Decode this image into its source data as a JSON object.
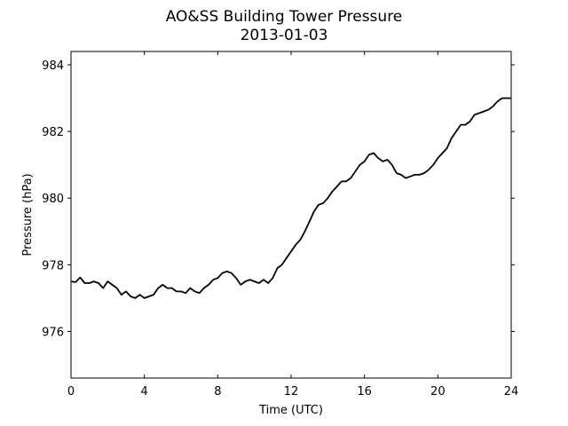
{
  "chart_data": {
    "type": "line",
    "title": "AO&SS Building Tower Pressure",
    "subtitle": "2013-01-03",
    "xlabel": "Time (UTC)",
    "ylabel": "Pressure (hPa)",
    "xlim": [
      0,
      24
    ],
    "ylim": [
      974.6,
      984.4
    ],
    "xticks": [
      0,
      4,
      8,
      12,
      16,
      20,
      24
    ],
    "yticks": [
      976,
      978,
      980,
      982,
      984
    ],
    "grid": false,
    "line_color": "#000000",
    "series": [
      {
        "x": [
          0,
          0.25,
          0.5,
          0.75,
          1,
          1.25,
          1.5,
          1.75,
          2,
          2.25,
          2.5,
          2.75,
          3,
          3.25,
          3.5,
          3.75,
          4,
          4.25,
          4.5,
          4.75,
          5,
          5.25,
          5.5,
          5.75,
          6,
          6.25,
          6.5,
          6.75,
          7,
          7.25,
          7.5,
          7.75,
          8,
          8.25,
          8.5,
          8.75,
          9,
          9.25,
          9.5,
          9.75,
          10,
          10.25,
          10.5,
          10.75,
          11,
          11.25,
          11.5,
          11.75,
          12,
          12.25,
          12.5,
          12.75,
          13,
          13.25,
          13.5,
          13.75,
          14,
          14.25,
          14.5,
          14.75,
          15,
          15.25,
          15.5,
          15.75,
          16,
          16.25,
          16.5,
          16.75,
          17,
          17.25,
          17.5,
          17.75,
          18,
          18.25,
          18.5,
          18.75,
          19,
          19.25,
          19.5,
          19.75,
          20,
          20.25,
          20.5,
          20.75,
          21,
          21.25,
          21.5,
          21.75,
          22,
          22.25,
          22.5,
          22.75,
          23,
          23.25,
          23.5,
          23.75,
          24
        ],
        "y": [
          977.5,
          977.48,
          977.62,
          977.45,
          977.45,
          977.5,
          977.45,
          977.3,
          977.5,
          977.4,
          977.3,
          977.1,
          977.2,
          977.05,
          977.0,
          977.1,
          977.0,
          977.05,
          977.1,
          977.3,
          977.4,
          977.3,
          977.3,
          977.2,
          977.2,
          977.15,
          977.3,
          977.2,
          977.15,
          977.3,
          977.4,
          977.55,
          977.6,
          977.75,
          977.8,
          977.75,
          977.6,
          977.4,
          977.5,
          977.55,
          977.5,
          977.45,
          977.55,
          977.45,
          977.6,
          977.9,
          978.0,
          978.2,
          978.4,
          978.6,
          978.75,
          979.0,
          979.3,
          979.6,
          979.8,
          979.85,
          980.0,
          980.2,
          980.35,
          980.5,
          980.5,
          980.6,
          980.8,
          981.0,
          981.1,
          981.3,
          981.35,
          981.2,
          981.1,
          981.15,
          981.0,
          980.75,
          980.7,
          980.6,
          980.65,
          980.7,
          980.7,
          980.75,
          980.85,
          981.0,
          981.2,
          981.35,
          981.5,
          981.8,
          982.0,
          982.2,
          982.2,
          982.3,
          982.5,
          982.55,
          982.6,
          982.65,
          982.75,
          982.9,
          983.0,
          983.0,
          983.0
        ]
      }
    ]
  }
}
